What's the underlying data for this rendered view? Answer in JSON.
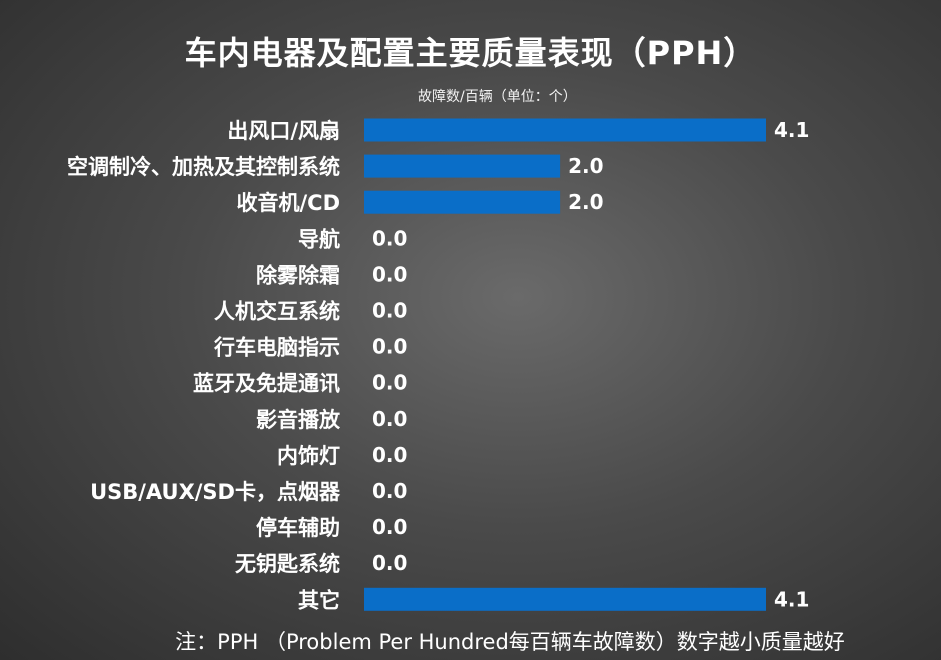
{
  "header": {
    "title": "车内电器及配置主要质量表现（PPH）",
    "unit_label": "故障数/百辆（单位：个）"
  },
  "footer": {
    "note": "注：PPH （Problem Per Hundred每百辆车故障数）数字越小质量越好"
  },
  "chart_data": {
    "type": "bar",
    "orientation": "horizontal",
    "title": "车内电器及配置主要质量表现（PPH）",
    "ylabel": "故障数/百辆（单位：个）",
    "categories": [
      "出风口/风扇",
      "空调制冷、加热及其控制系统",
      "收音机/CD",
      "导航",
      "除雾除霜",
      "人机交互系统",
      "行车电脑指示",
      "蓝牙及免提通讯",
      "影音播放",
      "内饰灯",
      "USB/AUX/SD卡，点烟器",
      "停车辅助",
      "无钥匙系统",
      "其它"
    ],
    "values": [
      4.1,
      2.0,
      2.0,
      0.0,
      0.0,
      0.0,
      0.0,
      0.0,
      0.0,
      0.0,
      0.0,
      0.0,
      0.0,
      4.1
    ],
    "value_labels": [
      "4.1",
      "2.0",
      "2.0",
      "0.0",
      "0.0",
      "0.0",
      "0.0",
      "0.0",
      "0.0",
      "0.0",
      "0.0",
      "0.0",
      "0.0",
      "4.1"
    ],
    "xlim": [
      0,
      4.1
    ],
    "bar_color": "#0a6ec8",
    "grid": false,
    "legend": "none"
  }
}
